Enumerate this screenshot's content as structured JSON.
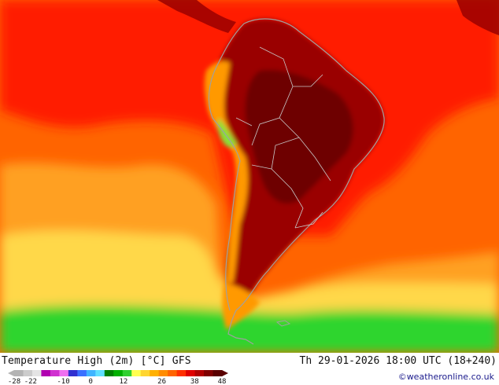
{
  "map": {
    "region": "South America",
    "variable": "Temperature High (2m)",
    "unit": "°C",
    "model": "GFS"
  },
  "footer": {
    "title": "Temperature High (2m) [°C] GFS",
    "valid_time": "Th 29-01-2026 18:00 UTC (18+240)",
    "credit": "©weatheronline.co.uk"
  },
  "legend": {
    "tick_labels": [
      "-28",
      "-22",
      "-10",
      "0",
      "12",
      "26",
      "38",
      "48"
    ],
    "colors": [
      "#b4b4b4",
      "#cccccc",
      "#e4e4e4",
      "#b000b0",
      "#d030d0",
      "#f070f0",
      "#3030d0",
      "#3a70ff",
      "#40b4ff",
      "#60e0ff",
      "#008000",
      "#00b000",
      "#30d030",
      "#ffff50",
      "#ffd530",
      "#ffb000",
      "#ff8c00",
      "#ff6400",
      "#ff3000",
      "#e00000",
      "#b00000",
      "#800000",
      "#5a0000"
    ]
  },
  "colors": {
    "ocean_hot": "#ff1e00",
    "ocean_warm": "#ff6400",
    "ocean_mild": "#ffa020",
    "ocean_cool": "#ffd84a",
    "ocean_cold": "#2ed52e",
    "land_hot": "#9a0000",
    "land_very_hot": "#6e0000",
    "highland": "#ff9900",
    "andes_cold": "#88e03a",
    "coast_line": "#a0a0a0",
    "border_line": "#c8c8c8"
  }
}
